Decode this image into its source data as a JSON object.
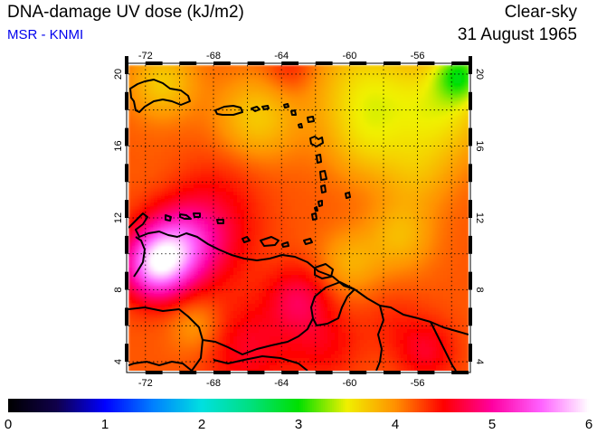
{
  "header": {
    "title": "DNA-damage UV dose (kJ/m2)",
    "source": "MSR - KNMI",
    "mode": "Clear-sky",
    "date": "31 August 1965"
  },
  "colors": {
    "source_text": "#0000ee",
    "frame": "#000000",
    "grid": "#000000",
    "coast": "#000000"
  },
  "map": {
    "lon_range": [
      -73,
      -53
    ],
    "lat_range": [
      3.5,
      20.5
    ],
    "lon_ticks": [
      -72,
      -68,
      -64,
      -60,
      -56
    ],
    "lat_ticks": [
      4,
      8,
      12,
      16,
      20
    ],
    "lon_labels": [
      "-72",
      "-68",
      "-64",
      "-60",
      "-56"
    ],
    "lat_labels": [
      "4",
      "8",
      "12",
      "16",
      "20"
    ],
    "grid": "dotted",
    "region": "Caribbean / northern South America"
  },
  "field": {
    "base_value": 4.2,
    "features": [
      {
        "lon": -71.5,
        "lat": 9.3,
        "value": 5.4,
        "spread": 1.3
      },
      {
        "lon": -70.2,
        "lat": 10.3,
        "value": 5.1,
        "spread": 1.5
      },
      {
        "lon": -68.5,
        "lat": 11.2,
        "value": 4.7,
        "spread": 2.0
      },
      {
        "lon": -71.0,
        "lat": 19.5,
        "value": 3.7,
        "spread": 1.4
      },
      {
        "lon": -65.5,
        "lat": 17.5,
        "value": 3.7,
        "spread": 1.7
      },
      {
        "lon": -59.0,
        "lat": 19.0,
        "value": 3.6,
        "spread": 2.2
      },
      {
        "lon": -54.5,
        "lat": 18.0,
        "value": 3.6,
        "spread": 2.0
      },
      {
        "lon": -53.5,
        "lat": 20.0,
        "value": 3.3,
        "spread": 1.0
      },
      {
        "lon": -59.0,
        "lat": 16.0,
        "value": 3.9,
        "spread": 1.6
      },
      {
        "lon": -56.0,
        "lat": 14.5,
        "value": 3.9,
        "spread": 1.5
      },
      {
        "lon": -57.0,
        "lat": 11.0,
        "value": 3.8,
        "spread": 1.4
      },
      {
        "lon": -60.0,
        "lat": 9.5,
        "value": 3.85,
        "spread": 1.3
      },
      {
        "lon": -63.0,
        "lat": 7.5,
        "value": 4.7,
        "spread": 1.3
      },
      {
        "lon": -66.0,
        "lat": 4.8,
        "value": 4.6,
        "spread": 1.8
      },
      {
        "lon": -61.5,
        "lat": 5.0,
        "value": 4.5,
        "spread": 1.5
      },
      {
        "lon": -55.5,
        "lat": 4.6,
        "value": 4.6,
        "spread": 1.2
      },
      {
        "lon": -57.5,
        "lat": 6.2,
        "value": 4.35,
        "spread": 1.3
      },
      {
        "lon": -67.0,
        "lat": 14.5,
        "value": 4.3,
        "spread": 1.8
      },
      {
        "lon": -63.5,
        "lat": 20.3,
        "value": 4.45,
        "spread": 1.0
      },
      {
        "lon": -71.0,
        "lat": 14.0,
        "value": 4.15,
        "spread": 1.4
      },
      {
        "lon": -69.0,
        "lat": 6.0,
        "value": 3.9,
        "spread": 1.1
      }
    ]
  },
  "colorbar": {
    "min": 0,
    "max": 6,
    "tick_labels": [
      "0",
      "1",
      "2",
      "3",
      "4",
      "5",
      "6"
    ],
    "stops": [
      {
        "value": 0.0,
        "color": "#000000"
      },
      {
        "value": 0.5,
        "color": "#10004a"
      },
      {
        "value": 1.0,
        "color": "#0000ff"
      },
      {
        "value": 1.5,
        "color": "#0080ff"
      },
      {
        "value": 2.0,
        "color": "#00e0e0"
      },
      {
        "value": 2.5,
        "color": "#00e080"
      },
      {
        "value": 3.0,
        "color": "#00e000"
      },
      {
        "value": 3.5,
        "color": "#f0f000"
      },
      {
        "value": 4.0,
        "color": "#ff9000"
      },
      {
        "value": 4.5,
        "color": "#ff0000"
      },
      {
        "value": 5.0,
        "color": "#ff00a0"
      },
      {
        "value": 5.5,
        "color": "#ff60ff"
      },
      {
        "value": 6.0,
        "color": "#ffffff"
      }
    ]
  }
}
